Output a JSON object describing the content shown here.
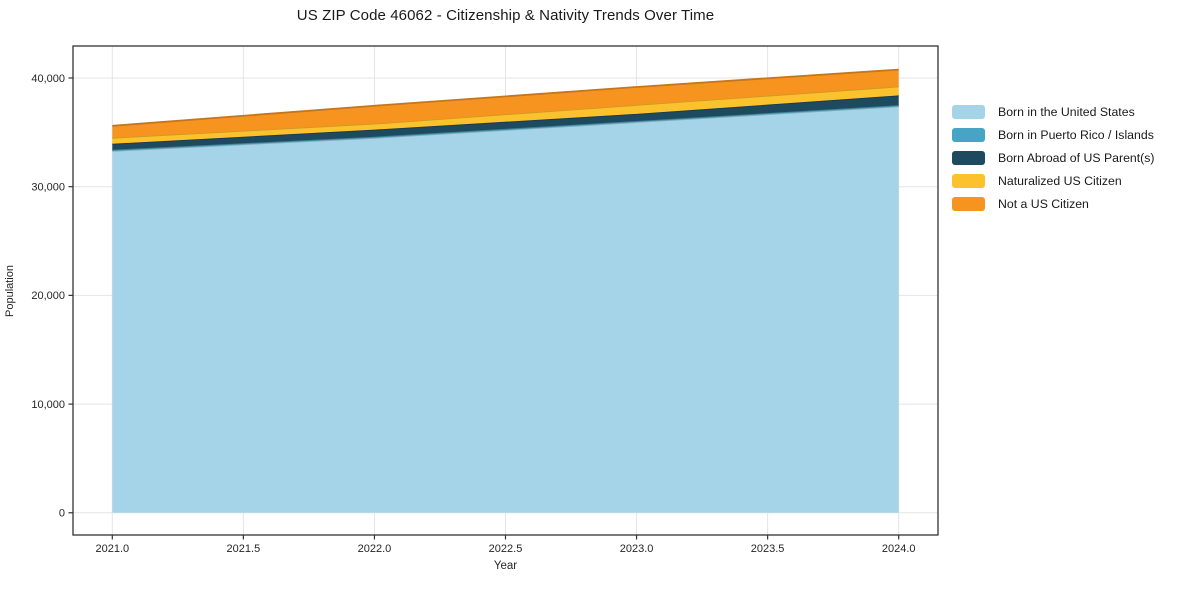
{
  "chart_data": {
    "type": "area",
    "stacked": true,
    "title": "US ZIP Code 46062 - Citizenship & Nativity Trends Over Time",
    "xlabel": "Year",
    "ylabel": "Population",
    "x": [
      2021,
      2022,
      2023,
      2024
    ],
    "series": [
      {
        "name": "Born in the United States",
        "color": "#a5d3e7",
        "values": [
          33300,
          34500,
          35950,
          37400
        ]
      },
      {
        "name": "Born in Puerto Rico / Islands",
        "color": "#46a4c4",
        "values": [
          100,
          100,
          100,
          100
        ]
      },
      {
        "name": "Born Abroad of US Parent(s)",
        "color": "#1d4a5f",
        "values": [
          550,
          650,
          650,
          900
        ]
      },
      {
        "name": "Naturalized US Citizen",
        "color": "#fcc22d",
        "values": [
          550,
          550,
          825,
          825
        ]
      },
      {
        "name": "Not a US Citizen",
        "color": "#f79420",
        "values": [
          1100,
          1650,
          1650,
          1550
        ]
      }
    ],
    "x_tick_labels": [
      "2021.0",
      "2021.5",
      "2022.0",
      "2022.5",
      "2023.0",
      "2023.5",
      "2024.0"
    ],
    "x_tick_values": [
      2021,
      2021.5,
      2022,
      2022.5,
      2023,
      2023.5,
      2024
    ],
    "y_tick_labels": [
      "0",
      "10,000",
      "20,000",
      "30,000",
      "40,000"
    ],
    "y_tick_values": [
      0,
      10000,
      20000,
      30000,
      40000
    ],
    "xlim": [
      2020.85,
      2024.15
    ],
    "ylim": [
      -2045,
      42945
    ],
    "grid": true,
    "legend_position": "center-right"
  },
  "colors": {
    "background": "#ffffff",
    "grid": "#e4e4e4",
    "spine": "#333333",
    "tick_text": "#262626",
    "title_text": "#1a1a1a"
  }
}
